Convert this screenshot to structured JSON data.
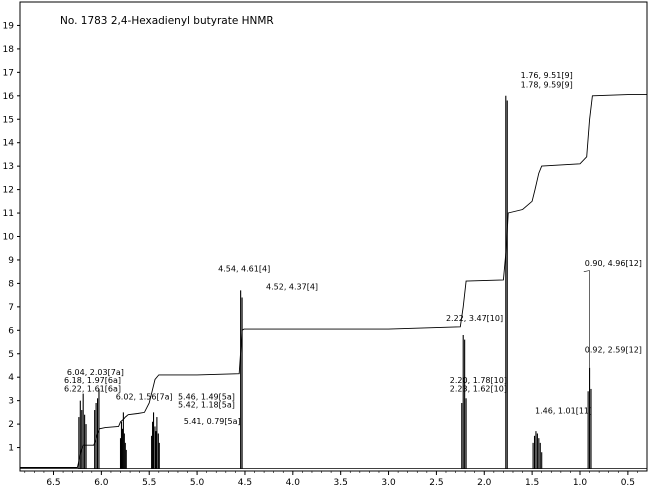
{
  "chart_data": {
    "type": "line",
    "title": "No. 1783  2,4-Hexadienyl butyrate HNMR",
    "xlim": [
      6.85,
      0.3
    ],
    "ylim": [
      0,
      20
    ],
    "x_ticks": [
      "6.5",
      "6.0",
      "5.5",
      "5.0",
      "4.5",
      "4.0",
      "3.5",
      "3.0",
      "2.5",
      "2.0",
      "1.5",
      "1.0",
      "0.5"
    ],
    "y_ticks": [
      "1",
      "2",
      "3",
      "4",
      "5",
      "6",
      "7",
      "8",
      "9",
      "10",
      "11",
      "12",
      "13",
      "14",
      "15",
      "16",
      "17",
      "18",
      "19"
    ],
    "spectrum_peaks": [
      {
        "x": 6.235,
        "y": 2.3
      },
      {
        "x": 6.22,
        "y": 3.0
      },
      {
        "x": 6.205,
        "y": 2.6
      },
      {
        "x": 6.19,
        "y": 3.3
      },
      {
        "x": 6.175,
        "y": 2.4
      },
      {
        "x": 6.16,
        "y": 2.0
      },
      {
        "x": 6.07,
        "y": 2.6
      },
      {
        "x": 6.055,
        "y": 2.9
      },
      {
        "x": 6.04,
        "y": 3.1
      },
      {
        "x": 6.025,
        "y": 3.5
      },
      {
        "x": 5.8,
        "y": 1.4
      },
      {
        "x": 5.79,
        "y": 2.1
      },
      {
        "x": 5.78,
        "y": 1.8
      },
      {
        "x": 5.77,
        "y": 2.5
      },
      {
        "x": 5.76,
        "y": 1.6
      },
      {
        "x": 5.75,
        "y": 1.2
      },
      {
        "x": 5.74,
        "y": 0.9
      },
      {
        "x": 5.475,
        "y": 1.5
      },
      {
        "x": 5.465,
        "y": 2.1
      },
      {
        "x": 5.455,
        "y": 2.5
      },
      {
        "x": 5.44,
        "y": 1.9
      },
      {
        "x": 5.43,
        "y": 1.7
      },
      {
        "x": 5.42,
        "y": 2.3
      },
      {
        "x": 5.405,
        "y": 1.6
      },
      {
        "x": 5.395,
        "y": 1.2
      },
      {
        "x": 4.545,
        "y": 7.7
      },
      {
        "x": 4.53,
        "y": 7.4
      },
      {
        "x": 2.235,
        "y": 2.9
      },
      {
        "x": 2.22,
        "y": 5.8
      },
      {
        "x": 2.205,
        "y": 5.6
      },
      {
        "x": 2.19,
        "y": 3.1
      },
      {
        "x": 1.775,
        "y": 16.0
      },
      {
        "x": 1.76,
        "y": 15.8
      },
      {
        "x": 1.49,
        "y": 1.2
      },
      {
        "x": 1.475,
        "y": 1.5
      },
      {
        "x": 1.46,
        "y": 1.7
      },
      {
        "x": 1.445,
        "y": 1.6
      },
      {
        "x": 1.43,
        "y": 1.4
      },
      {
        "x": 1.415,
        "y": 1.2
      },
      {
        "x": 1.4,
        "y": 0.8
      },
      {
        "x": 0.915,
        "y": 3.4
      },
      {
        "x": 0.9,
        "y": 4.4
      },
      {
        "x": 0.885,
        "y": 3.5
      }
    ],
    "integral_curve": [
      [
        6.85,
        0.15
      ],
      [
        6.25,
        0.15
      ],
      [
        6.23,
        0.5
      ],
      [
        6.21,
        0.9
      ],
      [
        6.19,
        1.1
      ],
      [
        6.15,
        1.1
      ],
      [
        6.08,
        1.1
      ],
      [
        6.06,
        1.3
      ],
      [
        6.04,
        1.6
      ],
      [
        6.02,
        1.8
      ],
      [
        5.96,
        1.85
      ],
      [
        5.82,
        1.9
      ],
      [
        5.8,
        2.1
      ],
      [
        5.77,
        2.2
      ],
      [
        5.75,
        2.3
      ],
      [
        5.72,
        2.4
      ],
      [
        5.62,
        2.45
      ],
      [
        5.55,
        2.5
      ],
      [
        5.5,
        2.9
      ],
      [
        5.47,
        3.4
      ],
      [
        5.44,
        3.9
      ],
      [
        5.4,
        4.1
      ],
      [
        5.0,
        4.1
      ],
      [
        4.56,
        4.15
      ],
      [
        4.53,
        6.0
      ],
      [
        4.51,
        6.05
      ],
      [
        3.0,
        6.05
      ],
      [
        2.25,
        6.15
      ],
      [
        2.22,
        7.0
      ],
      [
        2.19,
        8.1
      ],
      [
        1.8,
        8.15
      ],
      [
        1.77,
        9.5
      ],
      [
        1.75,
        11.0
      ],
      [
        1.6,
        11.15
      ],
      [
        1.5,
        11.5
      ],
      [
        1.47,
        12.0
      ],
      [
        1.43,
        12.7
      ],
      [
        1.4,
        13.0
      ],
      [
        1.0,
        13.1
      ],
      [
        0.93,
        13.4
      ],
      [
        0.9,
        15.0
      ],
      [
        0.87,
        16.0
      ],
      [
        0.5,
        16.05
      ],
      [
        0.3,
        16.05
      ]
    ],
    "annotations": [
      {
        "text": "1.76, 9.51[9]",
        "x": 1.62,
        "y": 16.75
      },
      {
        "text": "1.78, 9.59[9]",
        "x": 1.62,
        "y": 16.35
      },
      {
        "text": "0.90, 4.96[12]",
        "x": 0.95,
        "y": 8.75
      },
      {
        "text": "4.54, 4.61[4]",
        "x": 4.78,
        "y": 8.5
      },
      {
        "text": "4.52, 4.37[4]",
        "x": 4.28,
        "y": 7.75
      },
      {
        "text": "2.22, 3.47[10]",
        "x": 2.4,
        "y": 6.4
      },
      {
        "text": "0.92, 2.59[12]",
        "x": 0.95,
        "y": 5.05
      },
      {
        "text": "6.04, 2.03[7a]",
        "x": 6.36,
        "y": 4.1
      },
      {
        "text": "6.18, 1.97[6a]",
        "x": 6.39,
        "y": 3.75
      },
      {
        "text": "6.22, 1.61[6a]",
        "x": 6.39,
        "y": 3.4
      },
      {
        "text": "2.20, 1.78[10]",
        "x": 2.36,
        "y": 3.75
      },
      {
        "text": "2.23, 1.62[10]",
        "x": 2.36,
        "y": 3.4
      },
      {
        "text": "6.02, 1.56[7a]",
        "x": 5.85,
        "y": 3.05
      },
      {
        "text": "5.46, 1.49[5a]",
        "x": 5.2,
        "y": 3.05
      },
      {
        "text": "5.42, 1.18[5a]",
        "x": 5.2,
        "y": 2.7
      },
      {
        "text": "1.46, 1.01[11]",
        "x": 1.47,
        "y": 2.45
      },
      {
        "text": "5.41, 0.79[5a]",
        "x": 5.14,
        "y": 2.0
      }
    ],
    "grid": false,
    "legend": "none"
  }
}
